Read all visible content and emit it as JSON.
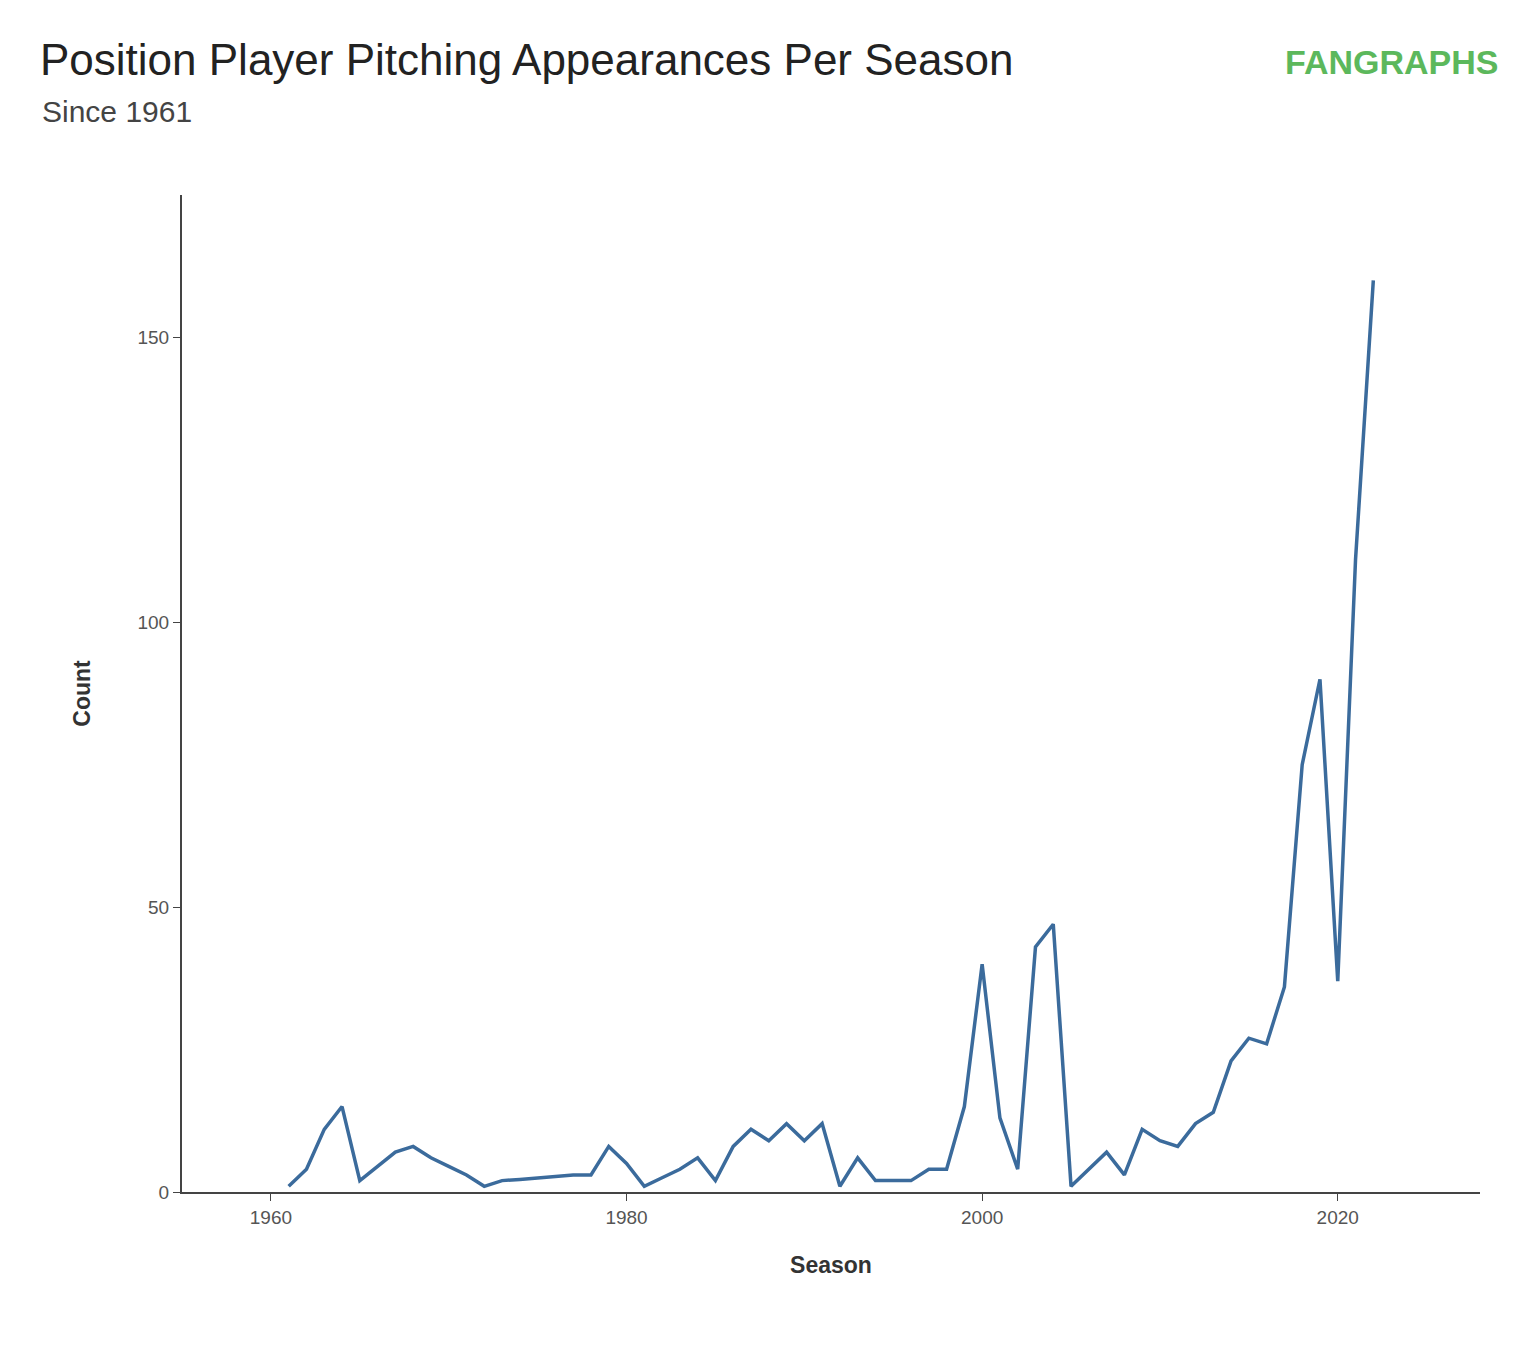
{
  "chart_data": {
    "type": "line",
    "title": "Position Player Pitching Appearances Per Season",
    "subtitle": "Since 1961",
    "annotations": [
      {
        "text": "FANGRAPHS"
      }
    ],
    "x_label": "Season",
    "y_label": "Count",
    "x": [
      1961,
      1962,
      1963,
      1964,
      1965,
      1966,
      1967,
      1968,
      1969,
      1970,
      1971,
      1972,
      1973,
      1974,
      1975,
      1976,
      1977,
      1978,
      1979,
      1980,
      1981,
      1982,
      1983,
      1984,
      1985,
      1986,
      1987,
      1988,
      1989,
      1990,
      1991,
      1992,
      1993,
      1994,
      1995,
      1996,
      1997,
      1998,
      1999,
      2000,
      2001,
      2002,
      2003,
      2004,
      2005,
      2006,
      2007,
      2008,
      2009,
      2010,
      2011,
      2012,
      2013,
      2014,
      2015,
      2016,
      2017,
      2018,
      2019,
      2020,
      2021,
      2022
    ],
    "values": [
      1,
      4,
      11,
      15,
      2,
      4.5,
      7,
      8,
      6,
      4.5,
      3,
      1,
      2,
      2.2,
      2.5,
      2.7,
      3,
      3,
      8,
      5,
      1,
      2.5,
      4,
      6,
      2,
      8,
      11,
      9,
      12,
      9,
      12,
      1,
      6,
      2,
      2,
      2,
      4,
      4,
      15,
      40,
      13,
      4,
      43,
      47,
      1,
      4,
      7,
      3,
      11,
      9,
      8,
      12,
      14,
      23,
      27,
      26,
      36,
      75,
      90,
      37,
      111,
      160
    ],
    "color": "#3b6b9c",
    "xlim": [
      1955,
      2028
    ],
    "xticks": [
      1960,
      1980,
      2000,
      2020
    ],
    "ylim": [
      0,
      175
    ],
    "yticks": [
      0,
      50,
      100,
      150
    ],
    "grid": false
  }
}
